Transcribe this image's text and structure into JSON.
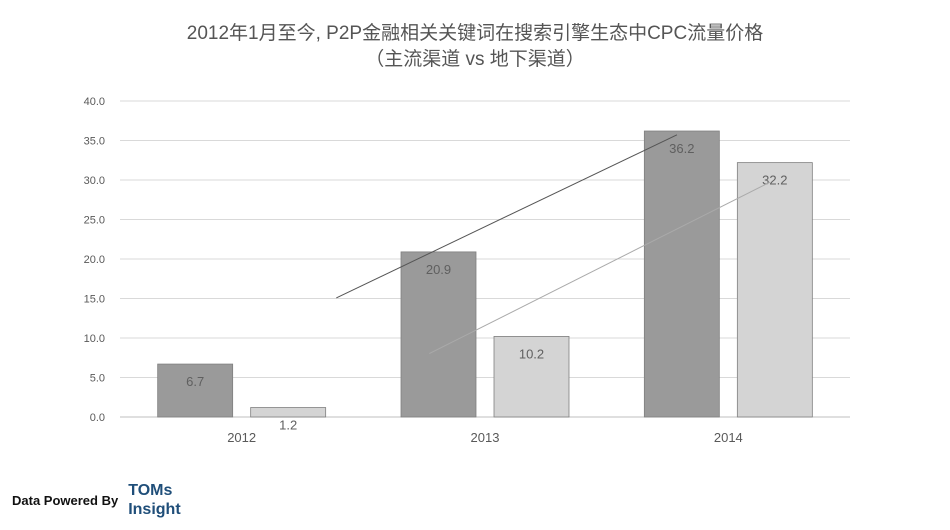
{
  "chart_data": {
    "type": "bar",
    "title": "2012年1月至今, P2P金融相关关键词在搜索引擎生态中CPC流量价格",
    "subtitle": "（主流渠道 vs 地下渠道）",
    "categories": [
      "2012",
      "2013",
      "2014"
    ],
    "series": [
      {
        "values": [
          6.7,
          20.9,
          36.2
        ],
        "color": "#9a9a9a",
        "trend_color": "#555555"
      },
      {
        "values": [
          1.2,
          10.2,
          32.2
        ],
        "color": "#d4d4d4",
        "trend_color": "#aaaaaa"
      }
    ],
    "data_labels": [
      [
        "6.7",
        "20.9",
        "36.2"
      ],
      [
        "1.2",
        "10.2",
        "32.2"
      ]
    ],
    "y_ticks": [
      "0.0",
      "5.0",
      "10.0",
      "15.0",
      "20.0",
      "25.0",
      "30.0",
      "35.0",
      "40.0"
    ],
    "ylim": [
      0,
      40
    ],
    "grid": true,
    "legend": "none"
  },
  "footer": {
    "label": "Data Powered By",
    "brand_line1": "TOMs",
    "brand_line2": "Insight"
  }
}
